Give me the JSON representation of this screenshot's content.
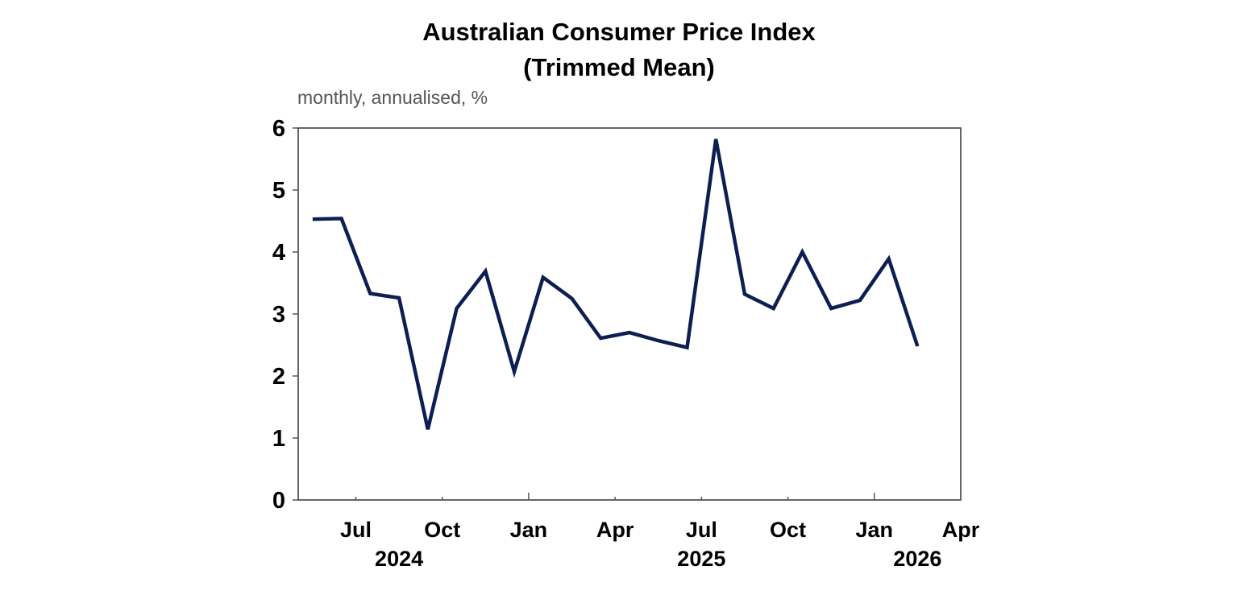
{
  "chart_data": {
    "type": "line",
    "title": "Australian Consumer Price Index",
    "subtitle": "(Trimmed Mean)",
    "ylabel": "monthly, annualised, %",
    "xlabel": "",
    "ylim": [
      0,
      6
    ],
    "yticks": [
      "0",
      "1",
      "2",
      "3",
      "4",
      "5",
      "6"
    ],
    "xlim": [
      "2024-05",
      "2026-04"
    ],
    "xticks": [
      {
        "month": "2024-07",
        "label": "Jul"
      },
      {
        "month": "2024-10",
        "label": "Oct"
      },
      {
        "month": "2025-01",
        "label": "Jan"
      },
      {
        "month": "2025-04",
        "label": "Apr"
      },
      {
        "month": "2025-07",
        "label": "Jul"
      },
      {
        "month": "2025-10",
        "label": "Oct"
      },
      {
        "month": "2026-01",
        "label": "Jan"
      },
      {
        "month": "2026-04",
        "label": "Apr"
      }
    ],
    "year_labels": [
      "2024",
      "2025",
      "2026"
    ],
    "grid": false,
    "series": [
      {
        "color": "#0d1f52",
        "x": [
          "2024-05",
          "2024-06",
          "2024-07",
          "2024-08",
          "2024-09",
          "2024-10",
          "2024-11",
          "2024-12",
          "2025-01",
          "2025-02",
          "2025-03",
          "2025-04",
          "2025-05",
          "2025-06",
          "2025-07",
          "2025-08",
          "2025-09",
          "2025-10",
          "2025-11",
          "2025-12",
          "2026-01",
          "2026-02"
        ],
        "values": [
          4.53,
          4.54,
          3.33,
          3.26,
          1.14,
          3.09,
          3.69,
          2.07,
          3.59,
          3.25,
          2.61,
          2.7,
          2.57,
          2.46,
          5.82,
          3.32,
          3.09,
          4.0,
          3.09,
          3.22,
          3.89,
          2.48
        ]
      }
    ]
  }
}
